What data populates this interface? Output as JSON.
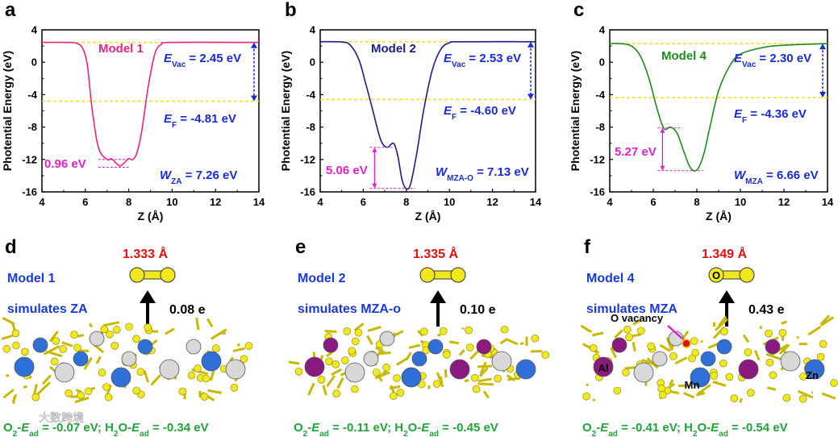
{
  "chart_data": [
    {
      "type": "line",
      "panel": "a",
      "xlabel": "Z (Å)",
      "ylabel": "Photential Energy (eV)",
      "xlim": [
        4,
        14
      ],
      "ylim": [
        -16,
        4
      ],
      "xticks": [
        "4",
        "6",
        "8",
        "10",
        "12",
        "14"
      ],
      "yticks": [
        "4",
        "0",
        "-4",
        "-8",
        "-12",
        "-16"
      ],
      "color": "#e5257f",
      "series": [
        {
          "name": "Model 1",
          "x": [
            4.0,
            5.0,
            5.6,
            5.9,
            6.1,
            6.3,
            6.6,
            7.0,
            7.2,
            7.4,
            7.6,
            7.8,
            8.0,
            8.2,
            8.4,
            8.6,
            8.9,
            9.2,
            9.5,
            10.0,
            14.0
          ],
          "y": [
            2.45,
            2.45,
            2.35,
            1.6,
            -0.5,
            -5.5,
            -10.5,
            -12.0,
            -11.9,
            -12.4,
            -12.8,
            -12.4,
            -11.9,
            -12.0,
            -11.0,
            -8.5,
            -3.0,
            1.0,
            2.2,
            2.45,
            2.45
          ]
        }
      ],
      "lines": {
        "e_vac": 2.45,
        "e_f": -4.81
      },
      "annotations": {
        "e_vac": {
          "prefix": "E",
          "sub": "Vac",
          "value": " = 2.45 eV"
        },
        "e_f": {
          "prefix": "E",
          "sub": "F",
          "value": " = -4.81 eV"
        },
        "w": {
          "prefix": "W",
          "sub": "ZA",
          "value": " = 7.26 eV"
        },
        "barrier": "0.96 eV",
        "barrier_range": [
          -12.0,
          -12.96
        ]
      }
    },
    {
      "type": "line",
      "panel": "b",
      "xlabel": "Z (Å)",
      "ylabel": "Photential Energy (eV)",
      "xlim": [
        4,
        14
      ],
      "ylim": [
        -16,
        4
      ],
      "xticks": [
        "4",
        "6",
        "8",
        "10",
        "12",
        "14"
      ],
      "yticks": [
        "4",
        "0",
        "-4",
        "-8",
        "-12",
        "-16"
      ],
      "color": "#1c1c8c",
      "series": [
        {
          "name": "Model 2",
          "x": [
            4.0,
            5.0,
            5.4,
            5.8,
            6.1,
            6.4,
            6.8,
            7.1,
            7.4,
            7.6,
            7.8,
            8.0,
            8.2,
            8.5,
            8.8,
            9.2,
            9.6,
            10.0,
            10.5,
            14.0
          ],
          "y": [
            2.53,
            2.5,
            2.1,
            0.3,
            -2.5,
            -5.5,
            -9.5,
            -10.5,
            -10.0,
            -11.5,
            -14.5,
            -15.6,
            -15.0,
            -11.0,
            -6.0,
            -1.0,
            1.6,
            2.4,
            2.53,
            2.53
          ]
        }
      ],
      "lines": {
        "e_vac": 2.53,
        "e_f": -4.6
      },
      "annotations": {
        "e_vac": {
          "prefix": "E",
          "sub": "Vac",
          "value": " = 2.53 eV"
        },
        "e_f": {
          "prefix": "E",
          "sub": "F",
          "value": " = -4.60 eV"
        },
        "w": {
          "prefix": "W",
          "sub": "MZA-O",
          "value": " = 7.13 eV"
        },
        "barrier": "5.06 eV",
        "barrier_range": [
          -10.5,
          -15.56
        ]
      }
    },
    {
      "type": "line",
      "panel": "c",
      "xlabel": "Z (Å)",
      "ylabel": "Photential Energy (eV)",
      "xlim": [
        4,
        14
      ],
      "ylim": [
        -16,
        4
      ],
      "xticks": [
        "4",
        "6",
        "8",
        "10",
        "12",
        "14"
      ],
      "yticks": [
        "4",
        "0",
        "-4",
        "-8",
        "-12",
        "-16"
      ],
      "color": "#1e8a1e",
      "series": [
        {
          "name": "Model 4",
          "x": [
            4.0,
            4.5,
            5.0,
            5.4,
            5.8,
            6.2,
            6.5,
            6.8,
            7.1,
            7.4,
            7.7,
            8.0,
            8.3,
            8.6,
            9.0,
            9.5,
            10.0,
            11.0,
            12.0,
            14.0
          ],
          "y": [
            2.3,
            2.3,
            2.0,
            0.8,
            -2.0,
            -6.0,
            -8.2,
            -8.0,
            -8.8,
            -11.0,
            -13.0,
            -13.3,
            -11.5,
            -8.0,
            -3.5,
            -0.5,
            1.0,
            1.8,
            2.1,
            2.3
          ]
        }
      ],
      "lines": {
        "e_vac": 2.3,
        "e_f": -4.36
      },
      "annotations": {
        "e_vac": {
          "prefix": "E",
          "sub": "Vac",
          "value": " = 2.30 eV"
        },
        "e_f": {
          "prefix": "E",
          "sub": "F",
          "value": " = -4.36 eV"
        },
        "w": {
          "prefix": "W",
          "sub": "MZA",
          "value": " = 6.66 eV"
        },
        "barrier": "5.27 eV",
        "barrier_range": [
          -8.1,
          -13.37
        ]
      }
    }
  ],
  "models": [
    {
      "letter": "d",
      "name": "Model 1",
      "simulates": "simulates ZA",
      "bond": "1.333 Å",
      "charge": "0.08 e",
      "o2_label": "O",
      "o2_sub": "2",
      "o2_e": "E",
      "o2_e_sub": "ad",
      "o2_val": " = -0.07 eV; ",
      "h2o_label": "H",
      "h2o_sub": "2",
      "h2o_o": "O-",
      "h2o_e": "E",
      "h2o_e_sub": "ad",
      "h2o_val": " = -0.34 eV"
    },
    {
      "letter": "e",
      "name": "Model 2",
      "simulates": "simulates MZA-o",
      "bond": "1.335 Å",
      "charge": "0.10 e",
      "o2_label": "O",
      "o2_sub": "2",
      "o2_e": "E",
      "o2_e_sub": "ad",
      "o2_val": " = -0.11 eV; ",
      "h2o_label": "H",
      "h2o_sub": "2",
      "h2o_o": "O-",
      "h2o_e": "E",
      "h2o_e_sub": "ad",
      "h2o_val": " = -0.45 eV"
    },
    {
      "letter": "f",
      "name": "Model 4",
      "simulates": "simulates MZA",
      "bond": "1.349 Å",
      "charge": "0.43 e",
      "o2_label": "O",
      "o2_sub": "2",
      "o2_e": "E",
      "o2_e_sub": "ad",
      "o2_val": " = -0.41 eV; ",
      "h2o_label": "H",
      "h2o_sub": "2",
      "h2o_o": "O-",
      "h2o_e": "E",
      "h2o_e_sub": "ad",
      "h2o_val": " = -0.54 eV",
      "o_vacancy": "O vacancy",
      "atom_al": "Al",
      "atom_mn": "Mn",
      "atom_zn": "Zn",
      "atom_o": "O"
    }
  ],
  "watermark": "大数跨境",
  "colors": {
    "fermi_line": "#f0e020",
    "arrow_blue": "#1a2ccf",
    "barrier_magenta": "#e020c8",
    "bond_red": "#e01010",
    "model_blue": "#1a3ad8",
    "s_yellow": "#f2e81e",
    "al_gray": "#d8d8d8",
    "zn_blue": "#2f6fd8",
    "mn_purple": "#8a1a80"
  }
}
